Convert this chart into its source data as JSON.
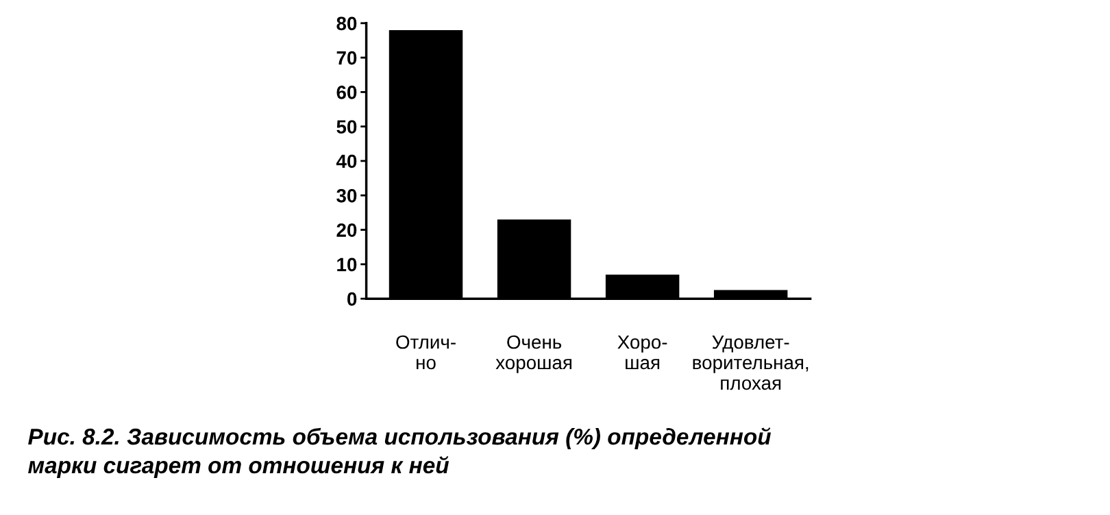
{
  "chart_data": {
    "type": "bar",
    "title": "Рис. 8.2. Зависимость объема использования (%) определенной\nмарки сигарет от отношения к ней",
    "categories": [
      "Отлич-\nно",
      "Очень\nхорошая",
      "Хоро-\nшая",
      "Удовлет-\nворительная,\nплохая"
    ],
    "values": [
      78,
      23,
      7,
      2.5
    ],
    "color": "#000000",
    "ylim": [
      0,
      80
    ],
    "yticks": [
      0,
      10,
      20,
      30,
      40,
      50,
      60,
      70,
      80
    ],
    "grid": false
  }
}
